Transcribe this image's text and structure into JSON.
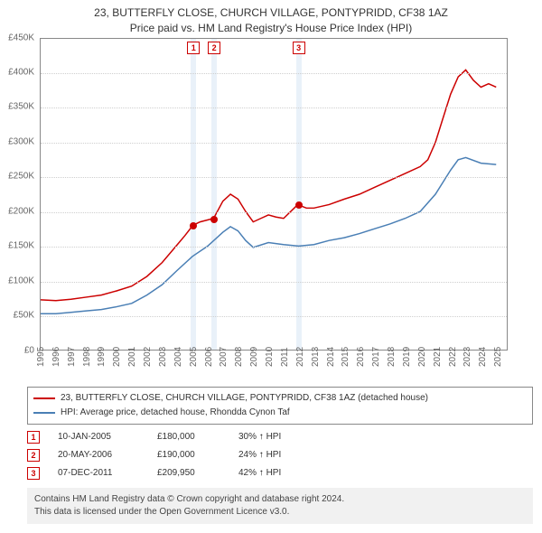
{
  "title": {
    "line1": "23, BUTTERFLY CLOSE, CHURCH VILLAGE, PONTYPRIDD, CF38 1AZ",
    "line2": "Price paid vs. HM Land Registry's House Price Index (HPI)"
  },
  "chart": {
    "type": "line",
    "x": {
      "min": 1995,
      "max": 2025.7,
      "ticks": [
        1995,
        1996,
        1997,
        1998,
        1999,
        2000,
        2001,
        2002,
        2003,
        2004,
        2005,
        2006,
        2007,
        2008,
        2009,
        2010,
        2011,
        2012,
        2013,
        2014,
        2015,
        2016,
        2017,
        2018,
        2019,
        2020,
        2021,
        2022,
        2023,
        2024,
        2025
      ]
    },
    "y": {
      "min": 0,
      "max": 450000,
      "ticks": [
        0,
        50000,
        100000,
        150000,
        200000,
        250000,
        300000,
        350000,
        400000,
        450000
      ],
      "tick_labels": [
        "£0",
        "£50K",
        "£100K",
        "£150K",
        "£200K",
        "£250K",
        "£300K",
        "£350K",
        "£400K",
        "£450K"
      ]
    },
    "grid_color": "#cfcfcf",
    "border_color": "#888888",
    "background_color": "#ffffff",
    "series": [
      {
        "id": "property",
        "label": "23, BUTTERFLY CLOSE, CHURCH VILLAGE, PONTYPRIDD, CF38 1AZ (detached house)",
        "color": "#cc0000",
        "line_width": 1.5,
        "data": [
          [
            1995,
            72000
          ],
          [
            1996,
            71000
          ],
          [
            1997,
            73000
          ],
          [
            1998,
            76000
          ],
          [
            1999,
            79000
          ],
          [
            2000,
            85000
          ],
          [
            2001,
            92000
          ],
          [
            2002,
            106000
          ],
          [
            2003,
            126000
          ],
          [
            2004,
            152000
          ],
          [
            2004.5,
            165000
          ],
          [
            2005.03,
            180000
          ],
          [
            2005.5,
            185000
          ],
          [
            2006.39,
            190000
          ],
          [
            2007,
            215000
          ],
          [
            2007.5,
            225000
          ],
          [
            2008,
            218000
          ],
          [
            2008.5,
            200000
          ],
          [
            2009,
            185000
          ],
          [
            2009.5,
            190000
          ],
          [
            2010,
            195000
          ],
          [
            2010.5,
            192000
          ],
          [
            2011,
            190000
          ],
          [
            2011.93,
            209950
          ],
          [
            2012.5,
            205000
          ],
          [
            2013,
            205000
          ],
          [
            2014,
            210000
          ],
          [
            2015,
            218000
          ],
          [
            2016,
            225000
          ],
          [
            2017,
            235000
          ],
          [
            2018,
            245000
          ],
          [
            2019,
            255000
          ],
          [
            2020,
            265000
          ],
          [
            2020.5,
            275000
          ],
          [
            2021,
            300000
          ],
          [
            2021.5,
            335000
          ],
          [
            2022,
            370000
          ],
          [
            2022.5,
            395000
          ],
          [
            2023,
            405000
          ],
          [
            2023.5,
            390000
          ],
          [
            2024,
            380000
          ],
          [
            2024.5,
            385000
          ],
          [
            2025,
            380000
          ]
        ]
      },
      {
        "id": "hpi",
        "label": "HPI: Average price, detached house, Rhondda Cynon Taf",
        "color": "#4a7fb5",
        "line_width": 1.5,
        "data": [
          [
            1995,
            52000
          ],
          [
            1996,
            52000
          ],
          [
            1997,
            54000
          ],
          [
            1998,
            56000
          ],
          [
            1999,
            58000
          ],
          [
            2000,
            62000
          ],
          [
            2001,
            67000
          ],
          [
            2002,
            79000
          ],
          [
            2003,
            94000
          ],
          [
            2004,
            115000
          ],
          [
            2005,
            135000
          ],
          [
            2006,
            150000
          ],
          [
            2007,
            170000
          ],
          [
            2007.5,
            178000
          ],
          [
            2008,
            172000
          ],
          [
            2008.5,
            158000
          ],
          [
            2009,
            148000
          ],
          [
            2010,
            155000
          ],
          [
            2011,
            152000
          ],
          [
            2012,
            150000
          ],
          [
            2013,
            152000
          ],
          [
            2014,
            158000
          ],
          [
            2015,
            162000
          ],
          [
            2016,
            168000
          ],
          [
            2017,
            175000
          ],
          [
            2018,
            182000
          ],
          [
            2019,
            190000
          ],
          [
            2020,
            200000
          ],
          [
            2021,
            225000
          ],
          [
            2022,
            260000
          ],
          [
            2022.5,
            275000
          ],
          [
            2023,
            278000
          ],
          [
            2024,
            270000
          ],
          [
            2025,
            268000
          ]
        ]
      }
    ],
    "marker_bands": [
      {
        "x": 2005.03,
        "width_years": 0.35,
        "color": "#dbe7f5"
      },
      {
        "x": 2006.39,
        "width_years": 0.35,
        "color": "#dbe7f5"
      },
      {
        "x": 2011.93,
        "width_years": 0.35,
        "color": "#dbe7f5"
      }
    ],
    "sale_points": [
      {
        "n": "1",
        "x": 2005.03,
        "y": 180000
      },
      {
        "n": "2",
        "x": 2006.39,
        "y": 190000
      },
      {
        "n": "3",
        "x": 2011.93,
        "y": 209950
      }
    ]
  },
  "legend": {
    "entries": [
      {
        "series": "property"
      },
      {
        "series": "hpi"
      }
    ]
  },
  "sales": [
    {
      "n": "1",
      "date": "10-JAN-2005",
      "price": "£180,000",
      "diff": "30%",
      "arrow": "↑",
      "suffix": "HPI"
    },
    {
      "n": "2",
      "date": "20-MAY-2006",
      "price": "£190,000",
      "diff": "24%",
      "arrow": "↑",
      "suffix": "HPI"
    },
    {
      "n": "3",
      "date": "07-DEC-2011",
      "price": "£209,950",
      "diff": "42%",
      "arrow": "↑",
      "suffix": "HPI"
    }
  ],
  "footer": {
    "line1": "Contains HM Land Registry data © Crown copyright and database right 2024.",
    "line2": "This data is licensed under the Open Government Licence v3.0."
  }
}
